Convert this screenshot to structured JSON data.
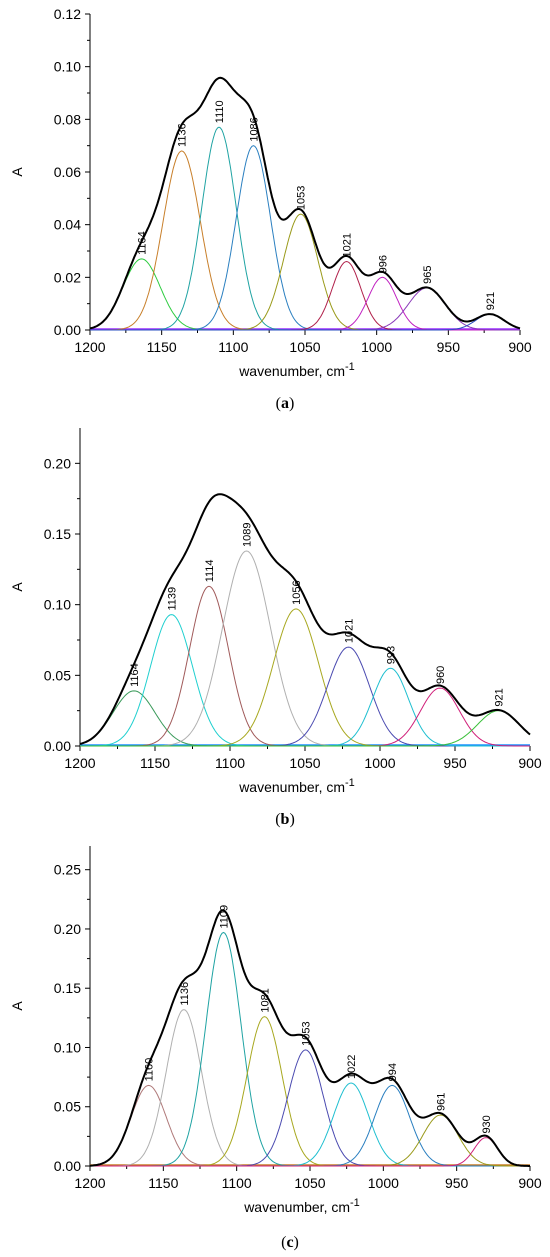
{
  "chart_data": [
    {
      "type": "line",
      "panel_label": "a",
      "xlabel": "wavenumber, cm",
      "xlabel_sup": "-1",
      "ylabel": "A",
      "xlim": [
        1200,
        900
      ],
      "ylim": [
        0,
        0.12
      ],
      "xticks": [
        1200,
        1150,
        1100,
        1050,
        1000,
        950,
        900
      ],
      "yticks": [
        0.0,
        0.02,
        0.04,
        0.06,
        0.08,
        0.1,
        0.12
      ],
      "ytick_labels": [
        "0.00",
        "0.02",
        "0.04",
        "0.06",
        "0.08",
        "0.10",
        "0.12"
      ],
      "peaks": [
        {
          "center": 1164,
          "amplitude": 0.027,
          "width": 13,
          "color": "#2ecc40",
          "label": "1164"
        },
        {
          "center": 1136,
          "amplitude": 0.068,
          "width": 13,
          "color": "#c87f2a",
          "label": "1136"
        },
        {
          "center": 1110,
          "amplitude": 0.077,
          "width": 12,
          "color": "#1fa3a3",
          "label": "1110"
        },
        {
          "center": 1086,
          "amplitude": 0.07,
          "width": 12,
          "color": "#2a7fc0",
          "label": "1086"
        },
        {
          "center": 1053,
          "amplitude": 0.044,
          "width": 12,
          "color": "#9a9a1a",
          "label": "1053"
        },
        {
          "center": 1021,
          "amplitude": 0.026,
          "width": 10,
          "color": "#b0204a",
          "label": "1021"
        },
        {
          "center": 996,
          "amplitude": 0.02,
          "width": 10,
          "color": "#c020c0",
          "label": "996"
        },
        {
          "center": 965,
          "amplitude": 0.016,
          "width": 13,
          "color": "#8a3ab9",
          "label": "965"
        },
        {
          "center": 921,
          "amplitude": 0.006,
          "width": 10,
          "color": "#2a4fc0",
          "label": "921"
        }
      ],
      "envelope_color": "#000000",
      "baseline_color": "#9b30ff"
    },
    {
      "type": "line",
      "panel_label": "b",
      "xlabel": "wavenumber, cm",
      "xlabel_sup": "-1",
      "ylabel": "A",
      "xlim": [
        1200,
        900
      ],
      "ylim": [
        0,
        0.225
      ],
      "xticks": [
        1200,
        1150,
        1100,
        1050,
        1000,
        950,
        900
      ],
      "yticks": [
        0.0,
        0.05,
        0.1,
        0.15,
        0.2
      ],
      "ytick_labels": [
        "0.00",
        "0.05",
        "0.10",
        "0.15",
        "0.20"
      ],
      "peaks": [
        {
          "center": 1164,
          "amplitude": 0.039,
          "width": 14,
          "color": "#3a9a5a",
          "label": "1164"
        },
        {
          "center": 1139,
          "amplitude": 0.093,
          "width": 14,
          "color": "#1fcfcf",
          "label": "1139"
        },
        {
          "center": 1114,
          "amplitude": 0.113,
          "width": 13,
          "color": "#a05a5a",
          "label": "1114"
        },
        {
          "center": 1089,
          "amplitude": 0.138,
          "width": 16,
          "color": "#b0b0b0",
          "label": "1089"
        },
        {
          "center": 1056,
          "amplitude": 0.097,
          "width": 15,
          "color": "#a8a820",
          "label": "1056"
        },
        {
          "center": 1021,
          "amplitude": 0.07,
          "width": 14,
          "color": "#4a4ab0",
          "label": "1021"
        },
        {
          "center": 993,
          "amplitude": 0.055,
          "width": 12,
          "color": "#1fbfd0",
          "label": "993"
        },
        {
          "center": 960,
          "amplitude": 0.041,
          "width": 13,
          "color": "#d0207a",
          "label": "960"
        },
        {
          "center": 921,
          "amplitude": 0.025,
          "width": 14,
          "color": "#3ac03a",
          "label": "921"
        }
      ],
      "envelope_color": "#000000",
      "baseline_color": "#1e90ff"
    },
    {
      "type": "line",
      "panel_label": "c",
      "xlabel": "wavenumber, cm",
      "xlabel_sup": "-1",
      "ylabel": "A",
      "xlim": [
        1200,
        900
      ],
      "ylim": [
        0,
        0.27
      ],
      "xticks": [
        1200,
        1150,
        1100,
        1050,
        1000,
        950,
        900
      ],
      "yticks": [
        0.0,
        0.05,
        0.1,
        0.15,
        0.2,
        0.25
      ],
      "ytick_labels": [
        "0.00",
        "0.05",
        "0.10",
        "0.15",
        "0.20",
        "0.25"
      ],
      "peaks": [
        {
          "center": 1160,
          "amplitude": 0.068,
          "width": 12,
          "color": "#b07a7a",
          "label": "1160"
        },
        {
          "center": 1136,
          "amplitude": 0.132,
          "width": 12,
          "color": "#b0b0b0",
          "label": "1136"
        },
        {
          "center": 1109,
          "amplitude": 0.197,
          "width": 12,
          "color": "#1fa3a3",
          "label": "1109"
        },
        {
          "center": 1081,
          "amplitude": 0.126,
          "width": 12,
          "color": "#a8a820",
          "label": "1081"
        },
        {
          "center": 1053,
          "amplitude": 0.098,
          "width": 12,
          "color": "#4a4ab0",
          "label": "1053"
        },
        {
          "center": 1022,
          "amplitude": 0.07,
          "width": 12,
          "color": "#1fbfd0",
          "label": "1022"
        },
        {
          "center": 994,
          "amplitude": 0.068,
          "width": 12,
          "color": "#2a7fc0",
          "label": "994"
        },
        {
          "center": 961,
          "amplitude": 0.043,
          "width": 12,
          "color": "#9a9a1a",
          "label": "961"
        },
        {
          "center": 930,
          "amplitude": 0.024,
          "width": 8,
          "color": "#d0207a",
          "label": "930"
        }
      ],
      "envelope_color": "#000000",
      "baseline_color": "#c87f2a"
    }
  ]
}
